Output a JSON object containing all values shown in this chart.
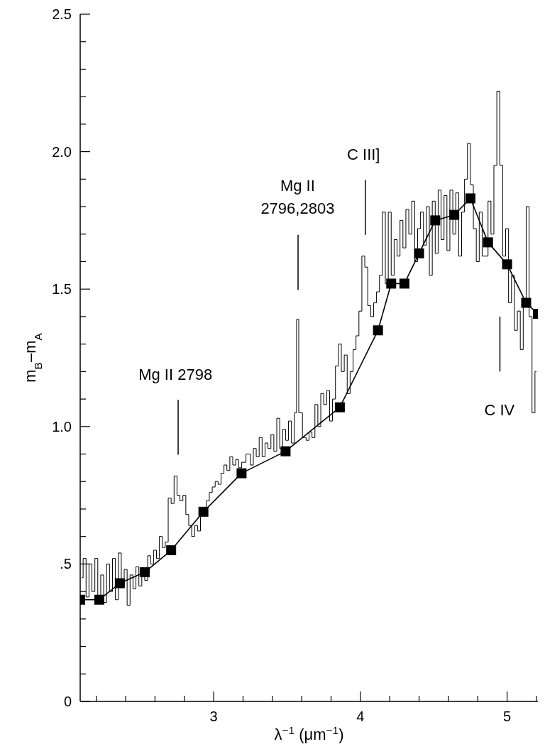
{
  "chart_data": {
    "type": "line",
    "xlabel": "λ$^{−1}$ (μm$^{−1}$)",
    "ylabel": "m$_{B}$–m$_{A}$",
    "xlim": [
      2.09,
      5.21
    ],
    "ylim": [
      0,
      2.5
    ],
    "xticks": [
      {
        "value": 2.2,
        "label": null
      },
      {
        "value": 2.4,
        "label": null
      },
      {
        "value": 2.6,
        "label": null
      },
      {
        "value": 2.8,
        "label": null
      },
      3,
      {
        "value": 3.2,
        "label": null
      },
      {
        "value": 3.4,
        "label": null
      },
      {
        "value": 3.6,
        "label": null
      },
      {
        "value": 3.8,
        "label": null
      },
      4,
      {
        "value": 4.2,
        "label": null
      },
      {
        "value": 4.4,
        "label": null
      },
      {
        "value": 4.6,
        "label": null
      },
      {
        "value": 4.8,
        "label": null
      },
      5,
      {
        "value": 5.2,
        "label": null
      }
    ],
    "yticks": [
      0,
      {
        "value": 0.1,
        "label": null
      },
      {
        "value": 0.2,
        "label": null
      },
      {
        "value": 0.3,
        "label": null
      },
      {
        "value": 0.4,
        "label": null
      },
      {
        "value": 0.5,
        "label": ".5"
      },
      {
        "value": 0.6,
        "label": null
      },
      {
        "value": 0.7,
        "label": null
      },
      {
        "value": 0.8,
        "label": null
      },
      {
        "value": 0.9,
        "label": null
      },
      {
        "value": 1.0,
        "label": "1.0"
      },
      {
        "value": 1.1,
        "label": null
      },
      {
        "value": 1.2,
        "label": null
      },
      {
        "value": 1.3,
        "label": null
      },
      {
        "value": 1.4,
        "label": null
      },
      {
        "value": 1.5,
        "label": "1.5"
      },
      {
        "value": 1.6,
        "label": null
      },
      {
        "value": 1.7,
        "label": null
      },
      {
        "value": 1.8,
        "label": null
      },
      {
        "value": 1.9,
        "label": null
      },
      {
        "value": 2.0,
        "label": "2.0"
      },
      {
        "value": 2.1,
        "label": null
      },
      {
        "value": 2.2,
        "label": null
      },
      {
        "value": 2.3,
        "label": null
      },
      {
        "value": 2.4,
        "label": null
      },
      {
        "value": 2.5,
        "label": "2.5"
      }
    ],
    "line_style": "solid",
    "series": [
      {
        "type": "step",
        "color": "#000000",
        "marker": "none",
        "x": [
          2.1,
          2.12,
          2.14,
          2.16,
          2.18,
          2.2,
          2.22,
          2.24,
          2.26,
          2.28,
          2.3,
          2.32,
          2.34,
          2.36,
          2.38,
          2.4,
          2.42,
          2.44,
          2.46,
          2.48,
          2.5,
          2.52,
          2.54,
          2.56,
          2.58,
          2.6,
          2.62,
          2.64,
          2.66,
          2.68,
          2.7,
          2.72,
          2.74,
          2.76,
          2.78,
          2.8,
          2.82,
          2.84,
          2.86,
          2.88,
          2.9,
          2.92,
          2.94,
          2.96,
          2.98,
          3.0,
          3.02,
          3.04,
          3.06,
          3.08,
          3.1,
          3.12,
          3.14,
          3.16,
          3.18,
          3.2,
          3.24,
          3.26,
          3.28,
          3.3,
          3.32,
          3.34,
          3.36,
          3.38,
          3.4,
          3.42,
          3.44,
          3.46,
          3.48,
          3.5,
          3.52,
          3.54,
          3.56,
          3.57,
          3.59,
          3.62,
          3.64,
          3.66,
          3.68,
          3.7,
          3.72,
          3.74,
          3.76,
          3.78,
          3.8,
          3.82,
          3.84,
          3.86,
          3.88,
          3.9,
          3.92,
          3.94,
          3.96,
          3.98,
          4.0,
          4.02,
          4.04,
          4.06,
          4.08,
          4.1,
          4.12,
          4.14,
          4.16,
          4.18,
          4.2,
          4.22,
          4.24,
          4.26,
          4.28,
          4.3,
          4.32,
          4.34,
          4.36,
          4.38,
          4.4,
          4.42,
          4.44,
          4.46,
          4.48,
          4.5,
          4.52,
          4.54,
          4.56,
          4.58,
          4.6,
          4.62,
          4.64,
          4.66,
          4.68,
          4.7,
          4.72,
          4.74,
          4.76,
          4.78,
          4.8,
          4.82,
          4.84,
          4.86,
          4.88,
          4.9,
          4.92,
          4.94,
          4.96,
          4.98,
          5.0,
          5.02,
          5.04,
          5.06,
          5.08,
          5.1,
          5.12,
          5.14,
          5.16,
          5.18,
          5.2
        ],
        "values": [
          0.45,
          0.52,
          0.38,
          0.5,
          0.4,
          0.52,
          0.38,
          0.46,
          0.36,
          0.5,
          0.4,
          0.52,
          0.37,
          0.54,
          0.42,
          0.48,
          0.35,
          0.46,
          0.41,
          0.49,
          0.42,
          0.46,
          0.44,
          0.53,
          0.5,
          0.55,
          0.52,
          0.6,
          0.56,
          0.58,
          0.74,
          0.72,
          0.82,
          0.75,
          0.73,
          0.75,
          0.68,
          0.64,
          0.6,
          0.64,
          0.62,
          0.7,
          0.7,
          0.73,
          0.76,
          0.78,
          0.8,
          0.79,
          0.83,
          0.86,
          0.84,
          0.89,
          0.86,
          0.88,
          0.85,
          0.87,
          0.9,
          0.86,
          0.92,
          0.89,
          0.96,
          0.89,
          0.94,
          0.92,
          0.97,
          0.91,
          1.03,
          0.92,
          0.99,
          0.95,
          1.02,
          0.94,
          1.05,
          1.39,
          1.05,
          0.96,
          0.95,
          0.98,
          0.96,
          1.08,
          1.0,
          1.12,
          1.08,
          1.13,
          1.02,
          1.1,
          1.22,
          1.3,
          1.2,
          1.26,
          1.12,
          1.2,
          1.28,
          1.33,
          1.42,
          1.62,
          1.58,
          1.44,
          1.4,
          1.45,
          1.49,
          1.55,
          1.78,
          1.52,
          1.78,
          1.55,
          1.68,
          1.62,
          1.75,
          1.65,
          1.79,
          1.7,
          1.82,
          1.6,
          1.72,
          1.78,
          1.66,
          1.8,
          1.55,
          1.82,
          1.63,
          1.86,
          1.68,
          1.84,
          1.64,
          1.86,
          1.7,
          1.85,
          1.62,
          1.78,
          1.9,
          2.03,
          1.88,
          1.72,
          1.6,
          1.78,
          1.62,
          1.62,
          1.82,
          1.7,
          1.95,
          2.22,
          1.95,
          1.62,
          1.72,
          1.45,
          1.55,
          1.35,
          1.42,
          1.28,
          1.46,
          1.8,
          1.4,
          1.05,
          1.2
        ]
      },
      {
        "color": "#000000",
        "marker": "square",
        "x": [
          2.09,
          2.22,
          2.36,
          2.53,
          2.71,
          2.93,
          3.19,
          3.49,
          3.86,
          4.12,
          4.21,
          4.3,
          4.4,
          4.51,
          4.64,
          4.75,
          4.87,
          5.0,
          5.13,
          5.21
        ],
        "values": [
          0.37,
          0.37,
          0.43,
          0.47,
          0.55,
          0.69,
          0.83,
          0.91,
          1.07,
          1.35,
          1.52,
          1.52,
          1.63,
          1.75,
          1.77,
          1.83,
          1.67,
          1.59,
          1.45,
          1.41
        ]
      }
    ],
    "annotations": [
      "Mg II 2798",
      "Mg II\n2796,2803",
      "C III]",
      "C IV"
    ]
  }
}
